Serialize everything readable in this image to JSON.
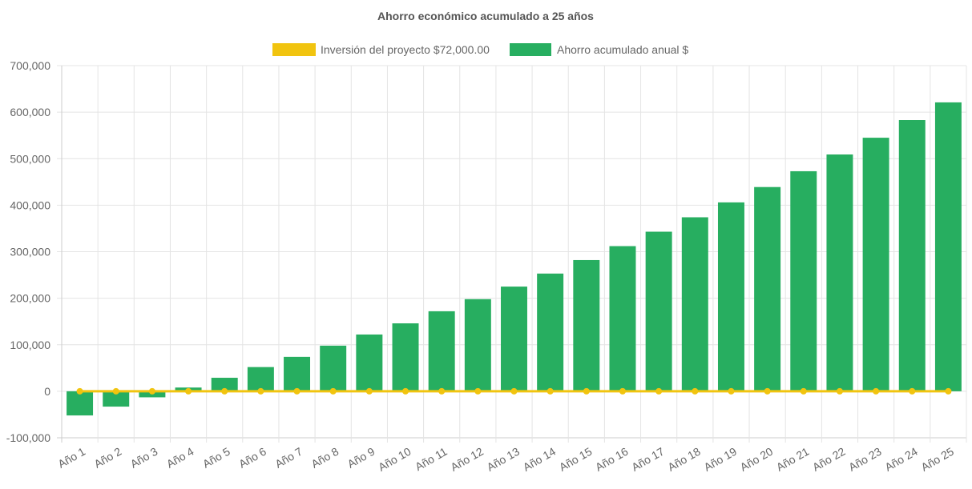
{
  "chart_data": {
    "type": "bar",
    "title": "Ahorro económico acumulado a 25 años",
    "legend_position": "top",
    "grid": true,
    "xlabel": "",
    "ylabel": "",
    "ylim": [
      -100000,
      700000
    ],
    "yticks": [
      "700,000",
      "600,000",
      "500,000",
      "400,000",
      "300,000",
      "200,000",
      "100,000",
      "0",
      "-100,000"
    ],
    "ytick_values": [
      700000,
      600000,
      500000,
      400000,
      300000,
      200000,
      100000,
      0,
      -100000
    ],
    "categories": [
      "Año 1",
      "Año 2",
      "Año 3",
      "Año 4",
      "Año 5",
      "Año 6",
      "Año 7",
      "Año 8",
      "Año 9",
      "Año 10",
      "Año 11",
      "Año 12",
      "Año 13",
      "Año 14",
      "Año 15",
      "Año 16",
      "Año 17",
      "Año 18",
      "Año 19",
      "Año 20",
      "Año 21",
      "Año 22",
      "Año 23",
      "Año 24",
      "Año 25"
    ],
    "series": [
      {
        "name": "Inversión del proyecto $72,000.00",
        "type": "line",
        "color": "#f1c40f",
        "values": [
          0,
          0,
          0,
          0,
          0,
          0,
          0,
          0,
          0,
          0,
          0,
          0,
          0,
          0,
          0,
          0,
          0,
          0,
          0,
          0,
          0,
          0,
          0,
          0,
          0
        ]
      },
      {
        "name": "Ahorro acumulado anual $",
        "type": "bar",
        "color": "#27ae60",
        "values": [
          -52000,
          -33000,
          -13000,
          8000,
          29000,
          52000,
          74000,
          98000,
          122000,
          146000,
          172000,
          198000,
          225000,
          253000,
          282000,
          312000,
          343000,
          374000,
          406000,
          439000,
          473000,
          509000,
          545000,
          583000,
          621000
        ]
      }
    ]
  }
}
